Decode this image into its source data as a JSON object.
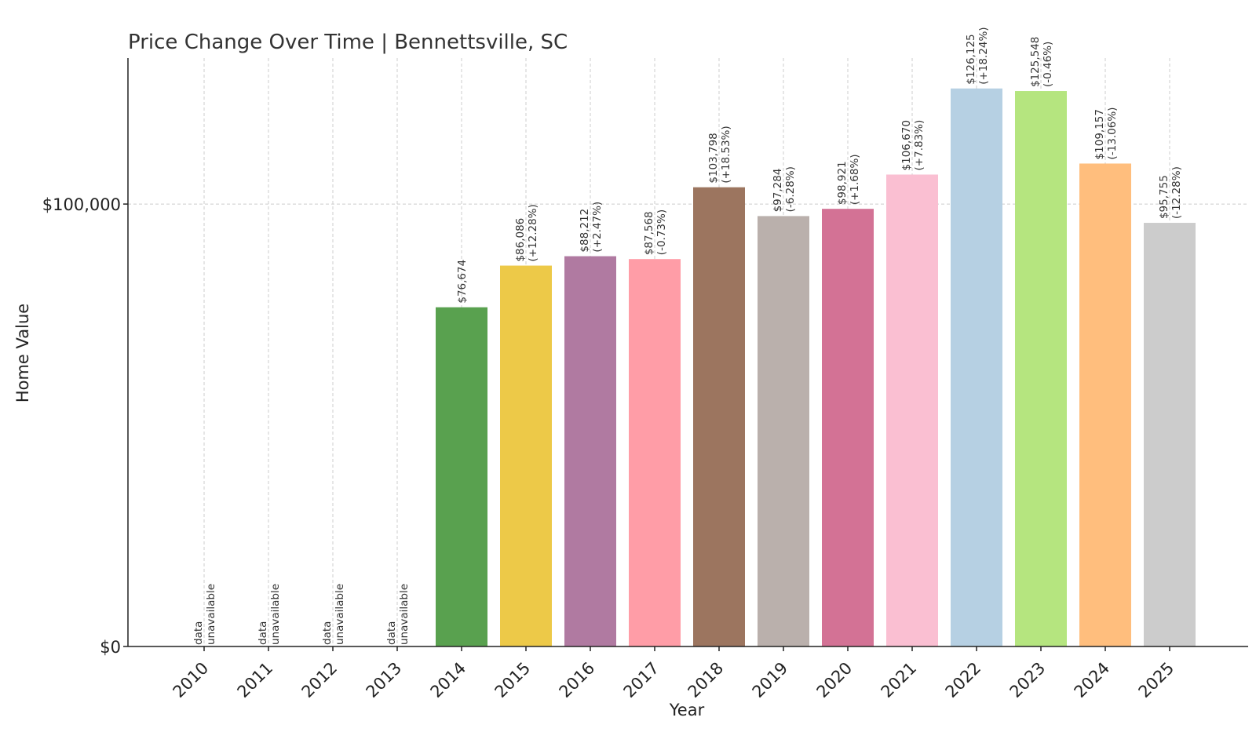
{
  "chart_data": {
    "type": "bar",
    "title": "Price Change Over Time | Bennettsville, SC",
    "xlabel": "Year",
    "ylabel": "Home Value",
    "ylim": [
      0,
      133000
    ],
    "yticks": [
      {
        "value": 0,
        "label": "$0"
      },
      {
        "value": 100000,
        "label": "$100,000"
      }
    ],
    "grid": true,
    "categories": [
      "2010",
      "2011",
      "2012",
      "2013",
      "2014",
      "2015",
      "2016",
      "2017",
      "2018",
      "2019",
      "2020",
      "2021",
      "2022",
      "2023",
      "2024",
      "2025"
    ],
    "values": [
      null,
      null,
      null,
      null,
      76674,
      86086,
      88212,
      87568,
      103798,
      97284,
      98921,
      106670,
      126125,
      125548,
      109157,
      95755
    ],
    "labels": [
      [
        "data",
        "unavailable"
      ],
      [
        "data",
        "unavailable"
      ],
      [
        "data",
        "unavailable"
      ],
      [
        "data",
        "unavailable"
      ],
      [
        "$76,674"
      ],
      [
        "$86,086",
        "(+12.28%)"
      ],
      [
        "$88,212",
        "(+2.47%)"
      ],
      [
        "$87,568",
        "(-0.73%)"
      ],
      [
        "$103,798",
        "(+18.53%)"
      ],
      [
        "$97,284",
        "(-6.28%)"
      ],
      [
        "$98,921",
        "(+1.68%)"
      ],
      [
        "$106,670",
        "(+7.83%)"
      ],
      [
        "$126,125",
        "(+18.24%)"
      ],
      [
        "$125,548",
        "(-0.46%)"
      ],
      [
        "$109,157",
        "(-13.06%)"
      ],
      [
        "$95,755",
        "(-12.28%)"
      ]
    ],
    "colors": [
      "#59a14f",
      "#59a14f",
      "#59a14f",
      "#59a14f",
      "#59a14f",
      "#edc948",
      "#b07aa1",
      "#ff9da7",
      "#9c755f",
      "#bab0ac",
      "#d37295",
      "#fabfd2",
      "#b6d0e3",
      "#b5e57f",
      "#ffbe7d",
      "#cccccc"
    ]
  }
}
